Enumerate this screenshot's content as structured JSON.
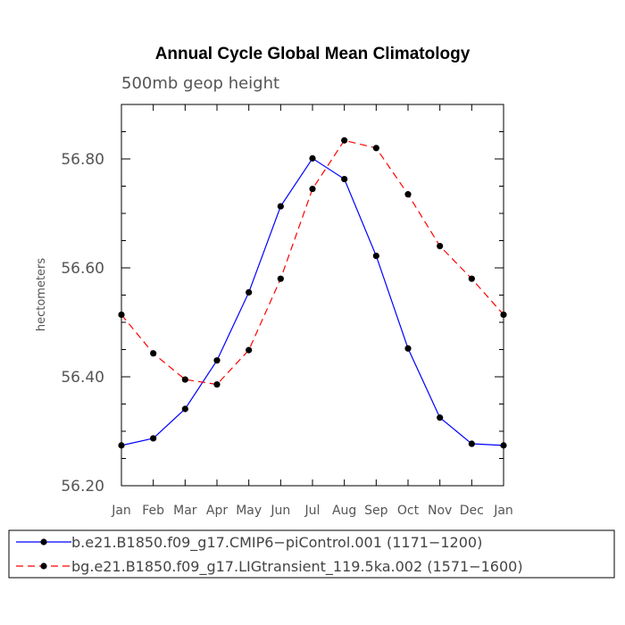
{
  "chart_data": {
    "type": "line",
    "title": "Annual Cycle Global Mean Climatology",
    "subtitle": "500mb geop height",
    "xlabel": "",
    "ylabel": "hectometers",
    "categories": [
      "Jan",
      "Feb",
      "Mar",
      "Apr",
      "May",
      "Jun",
      "Jul",
      "Aug",
      "Sep",
      "Oct",
      "Nov",
      "Dec",
      "Jan"
    ],
    "ylim": [
      56.2,
      56.9
    ],
    "yticks": [
      56.2,
      56.4,
      56.6,
      56.8
    ],
    "ytick_labels": [
      "56.20",
      "56.40",
      "56.60",
      "56.80"
    ],
    "series": [
      {
        "name": "b.e21.B1850.f09_g17.CMIP6−piControl.001 (1171−1200)",
        "color": "#0000ff",
        "dash": "solid",
        "values": [
          56.274,
          56.287,
          56.341,
          56.43,
          56.555,
          56.713,
          56.801,
          56.763,
          56.622,
          56.452,
          56.325,
          56.277,
          56.274
        ]
      },
      {
        "name": "bg.e21.B1850.f09_g17.LIGtransient_119.5ka.002 (1571−1600)",
        "color": "#ff0000",
        "dash": "dashed",
        "values": [
          56.514,
          56.443,
          56.395,
          56.386,
          56.449,
          56.58,
          56.745,
          56.834,
          56.82,
          56.735,
          56.64,
          56.58,
          56.514
        ]
      }
    ],
    "legend_position": "bottom"
  }
}
